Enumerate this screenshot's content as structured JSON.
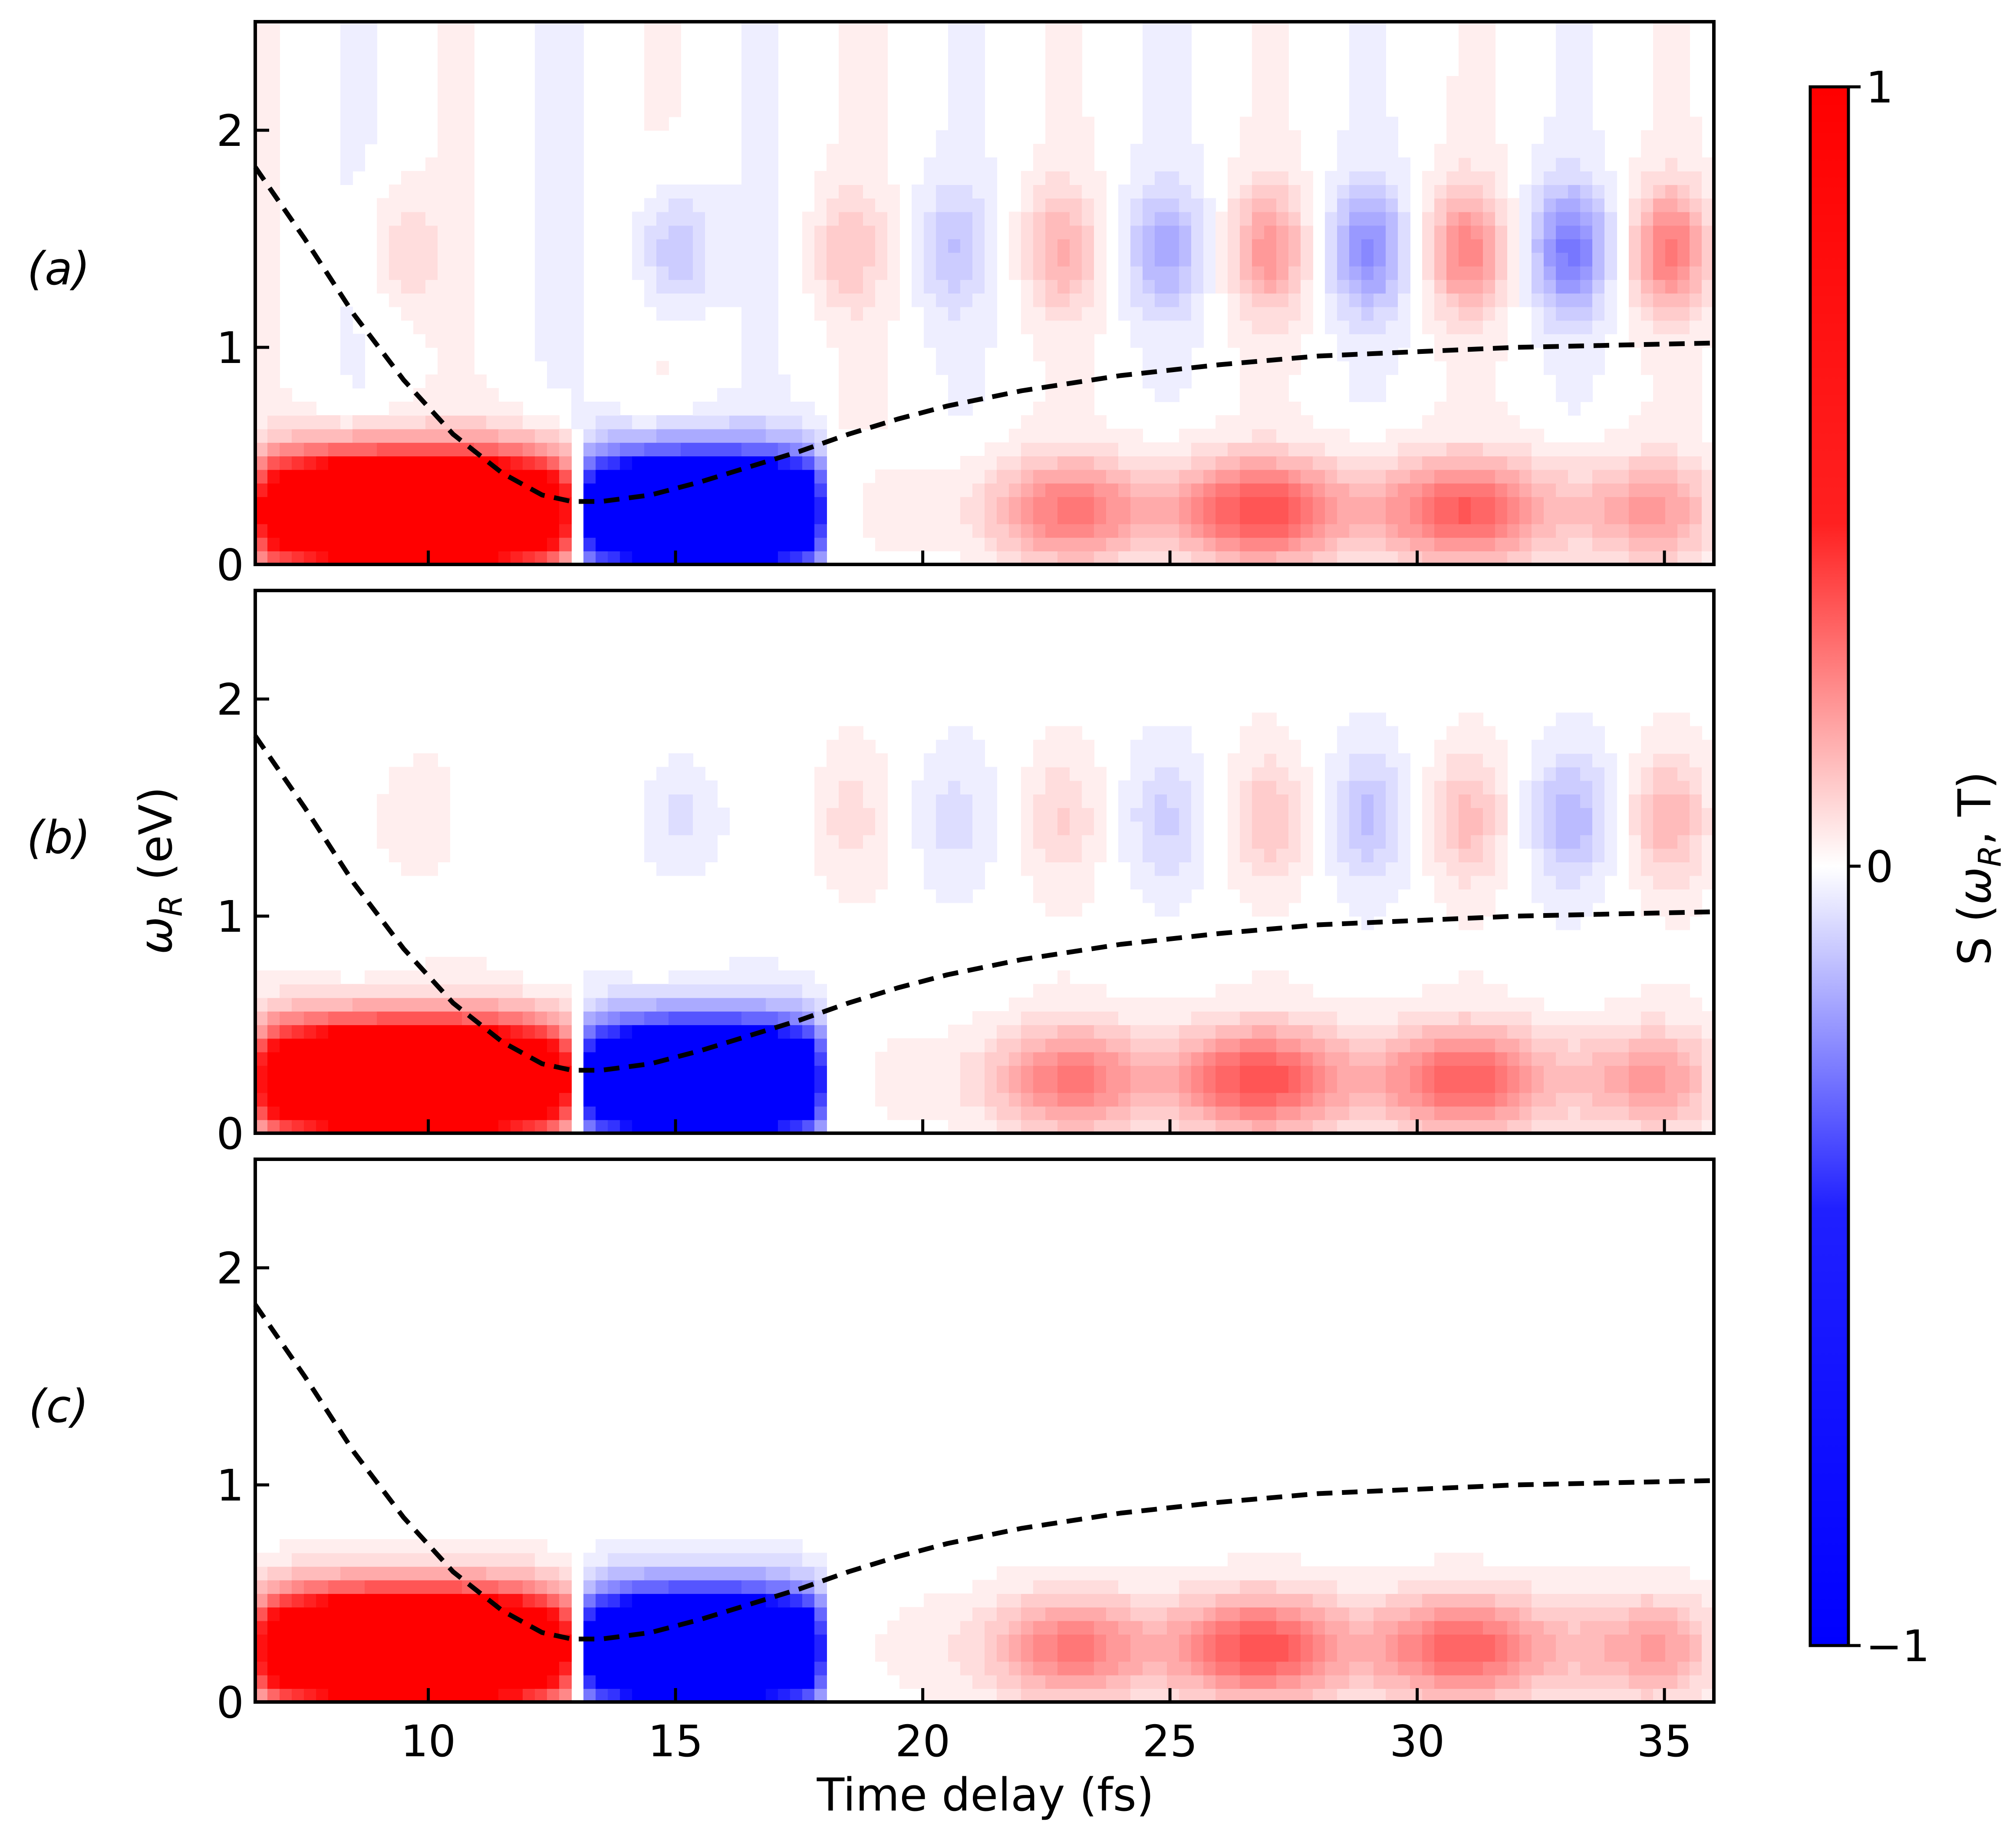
{
  "chart_data": {
    "type": "heatmap",
    "subtype": "filled-contour with dashed line overlay",
    "panels": [
      {
        "label": "(a)",
        "has_high_band": true,
        "high_band_strength": 1.0
      },
      {
        "label": "(b)",
        "has_high_band": true,
        "high_band_strength": 0.55
      },
      {
        "label": "(c)",
        "has_high_band": false,
        "high_band_strength": 0.0
      }
    ],
    "xlabel": "Time delay (fs)",
    "ylabel": "ω_R (eV)",
    "xlim": [
      6.5,
      36
    ],
    "ylim": [
      0,
      2.5
    ],
    "xticks": [
      10,
      15,
      20,
      25,
      30,
      35
    ],
    "yticks": [
      0,
      1,
      2
    ],
    "grid": false,
    "colorbar": {
      "label": "S (ω_R, T)",
      "range": [
        -1,
        1
      ],
      "ticks": [
        {
          "value": 1,
          "label": "1"
        },
        {
          "value": 0,
          "label": "0"
        },
        {
          "value": -1,
          "label": "−1"
        }
      ],
      "colors": {
        "negative": "#0000ff",
        "zero": "#ffffff",
        "positive": "#ff0000"
      }
    },
    "low_band": {
      "center_eV": 0.25,
      "lobes": [
        {
          "t_start": 6.5,
          "t_end": 12.9,
          "sign": 1,
          "peak": 1.0
        },
        {
          "t_start": 13.1,
          "t_end": 18.0,
          "sign": -1,
          "peak": 1.0
        },
        {
          "t_start": 18.5,
          "t_end": 36.0,
          "sign": 1,
          "peak": 0.55
        }
      ]
    },
    "high_band": {
      "center_eV": 1.45,
      "oscillation_peaks": [
        {
          "t": 9.5,
          "sign": 1,
          "amp": 0.15
        },
        {
          "t": 15.0,
          "sign": -1,
          "amp": 0.25
        },
        {
          "t": 18.5,
          "sign": 1,
          "amp": 0.2
        },
        {
          "t": 20.6,
          "sign": -1,
          "amp": 0.2
        },
        {
          "t": 22.8,
          "sign": 1,
          "amp": 0.28
        },
        {
          "t": 24.9,
          "sign": -1,
          "amp": 0.3
        },
        {
          "t": 27.0,
          "sign": 1,
          "amp": 0.38
        },
        {
          "t": 29.0,
          "sign": -1,
          "amp": 0.42
        },
        {
          "t": 31.0,
          "sign": 1,
          "amp": 0.45
        },
        {
          "t": 33.1,
          "sign": -1,
          "amp": 0.5
        },
        {
          "t": 35.1,
          "sign": 1,
          "amp": 0.5
        }
      ]
    },
    "dashed_curve": {
      "color": "#000000",
      "x": [
        6.5,
        7.5,
        8.5,
        9.5,
        10.5,
        11.5,
        12.3,
        12.9,
        13.5,
        14.5,
        15.5,
        16.5,
        17.5,
        18.5,
        19.5,
        20.5,
        22,
        24,
        26,
        28,
        30,
        32,
        34,
        36
      ],
      "y": [
        1.83,
        1.5,
        1.15,
        0.85,
        0.6,
        0.42,
        0.32,
        0.29,
        0.29,
        0.32,
        0.38,
        0.45,
        0.52,
        0.6,
        0.67,
        0.73,
        0.8,
        0.87,
        0.92,
        0.96,
        0.98,
        1.0,
        1.01,
        1.02
      ]
    }
  }
}
